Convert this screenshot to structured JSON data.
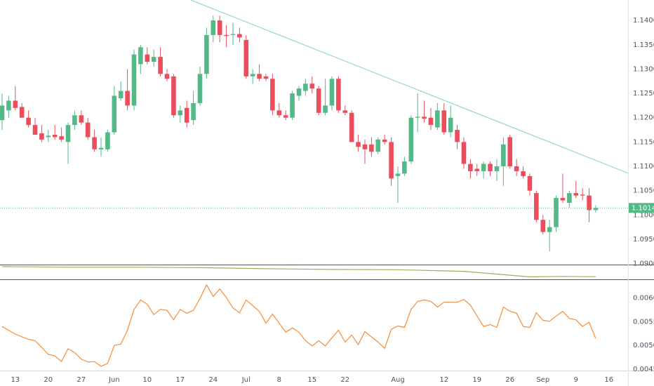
{
  "chart_data": [
    {
      "type": "candlestick",
      "up_color": "#53b987",
      "down_color": "#eb4d5c",
      "open": [
        1.1195,
        1.1215,
        1.1235,
        1.1222,
        1.12,
        1.1185,
        1.1168,
        1.116,
        1.1165,
        1.1162,
        1.115,
        1.1185,
        1.1205,
        1.119,
        1.116,
        1.1135,
        1.1135,
        1.117,
        1.124,
        1.1255,
        1.1225,
        1.131,
        1.133,
        1.1315,
        1.1325,
        1.129,
        1.1285,
        1.1205,
        1.122,
        1.1195,
        1.123,
        1.129,
        1.137,
        1.14,
        1.137,
        1.137,
        1.1372,
        1.136,
        1.1285,
        1.129,
        1.1285,
        1.128,
        1.1215,
        1.1205,
        1.12,
        1.1245,
        1.1255,
        1.127,
        1.126,
        1.121,
        1.1225,
        1.128,
        1.1215,
        1.121,
        1.115,
        1.1145,
        1.1145,
        1.113,
        1.1155,
        1.115,
        1.108,
        1.1085,
        1.111,
        1.12,
        1.1202,
        1.12,
        1.118,
        1.1215,
        1.117,
        1.1175,
        1.115,
        1.1105,
        1.1095,
        1.109,
        1.1105,
        1.109,
        1.11,
        1.116,
        1.11,
        1.109,
        1.108,
        1.1045,
        1.099,
        1.0965,
        1.0975,
        1.1035,
        1.1025,
        1.1045,
        1.1042,
        1.104,
        1.101
      ],
      "high": [
        1.125,
        1.1245,
        1.1265,
        1.123,
        1.1215,
        1.12,
        1.1185,
        1.1175,
        1.1185,
        1.118,
        1.119,
        1.1215,
        1.1215,
        1.12,
        1.1175,
        1.116,
        1.1175,
        1.1265,
        1.1275,
        1.13,
        1.134,
        1.135,
        1.1345,
        1.134,
        1.1345,
        1.13,
        1.129,
        1.1225,
        1.1235,
        1.1255,
        1.1305,
        1.1385,
        1.141,
        1.141,
        1.139,
        1.1395,
        1.1385,
        1.137,
        1.13,
        1.131,
        1.129,
        1.129,
        1.123,
        1.1215,
        1.1255,
        1.1265,
        1.128,
        1.1285,
        1.1265,
        1.128,
        1.1285,
        1.1285,
        1.1225,
        1.1215,
        1.1165,
        1.1155,
        1.116,
        1.116,
        1.1165,
        1.116,
        1.11,
        1.112,
        1.1205,
        1.125,
        1.1235,
        1.122,
        1.123,
        1.123,
        1.1225,
        1.1185,
        1.116,
        1.1115,
        1.1105,
        1.111,
        1.111,
        1.1115,
        1.116,
        1.1165,
        1.1115,
        1.11,
        1.1085,
        1.105,
        1.1,
        1.099,
        1.104,
        1.1085,
        1.105,
        1.107,
        1.1055,
        1.1055,
        1.102
      ],
      "low": [
        1.1175,
        1.12,
        1.1215,
        1.12,
        1.118,
        1.1165,
        1.115,
        1.115,
        1.1155,
        1.115,
        1.1105,
        1.1175,
        1.1185,
        1.1155,
        1.113,
        1.112,
        1.113,
        1.1165,
        1.1235,
        1.1215,
        1.1215,
        1.129,
        1.131,
        1.1305,
        1.1285,
        1.1275,
        1.12,
        1.119,
        1.118,
        1.1185,
        1.1225,
        1.128,
        1.1355,
        1.1355,
        1.1345,
        1.135,
        1.1355,
        1.128,
        1.127,
        1.1275,
        1.1275,
        1.1205,
        1.12,
        1.1195,
        1.1195,
        1.1235,
        1.1245,
        1.125,
        1.1205,
        1.1205,
        1.1215,
        1.121,
        1.1205,
        1.115,
        1.113,
        1.1105,
        1.112,
        1.1125,
        1.1145,
        1.106,
        1.1025,
        1.108,
        1.1105,
        1.117,
        1.119,
        1.1175,
        1.1175,
        1.1165,
        1.116,
        1.1135,
        1.1095,
        1.1075,
        1.108,
        1.1075,
        1.108,
        1.107,
        1.106,
        1.1095,
        1.108,
        1.1075,
        1.104,
        1.0985,
        1.096,
        1.0925,
        1.0965,
        1.1025,
        1.1015,
        1.1035,
        1.103,
        1.0985,
        1.1005
      ],
      "close": [
        1.1225,
        1.1235,
        1.122,
        1.12,
        1.1185,
        1.1165,
        1.1155,
        1.1163,
        1.116,
        1.1155,
        1.1185,
        1.1205,
        1.119,
        1.116,
        1.1135,
        1.1138,
        1.117,
        1.1245,
        1.1255,
        1.1225,
        1.133,
        1.1345,
        1.1315,
        1.1325,
        1.129,
        1.128,
        1.1205,
        1.1215,
        1.119,
        1.123,
        1.129,
        1.137,
        1.14,
        1.137,
        1.1368,
        1.1372,
        1.1365,
        1.1285,
        1.129,
        1.128,
        1.128,
        1.1215,
        1.1205,
        1.12,
        1.125,
        1.126,
        1.127,
        1.126,
        1.121,
        1.1225,
        1.128,
        1.1215,
        1.121,
        1.115,
        1.114,
        1.1135,
        1.113,
        1.1155,
        1.115,
        1.1075,
        1.1085,
        1.111,
        1.12,
        1.1202,
        1.1198,
        1.1185,
        1.1215,
        1.117,
        1.12,
        1.115,
        1.1105,
        1.109,
        1.109,
        1.1105,
        1.109,
        1.11,
        1.1145,
        1.11,
        1.109,
        1.108,
        1.105,
        1.099,
        1.0965,
        1.0975,
        1.1035,
        1.103,
        1.1045,
        1.104,
        1.104,
        1.101,
        1.10145
      ],
      "xlim": [
        -0.32,
        94.9
      ],
      "xticks": [
        {
          "value": 2,
          "label": "13"
        },
        {
          "value": 7,
          "label": "20"
        },
        {
          "value": 12,
          "label": "27"
        },
        {
          "value": 17,
          "label": "Jun"
        },
        {
          "value": 22,
          "label": "10"
        },
        {
          "value": 27,
          "label": "17"
        },
        {
          "value": 32,
          "label": "24"
        },
        {
          "value": 37,
          "label": "Jul"
        },
        {
          "value": 42,
          "label": "8"
        },
        {
          "value": 47,
          "label": "15"
        },
        {
          "value": 52,
          "label": "22"
        },
        {
          "value": 60,
          "label": "Aug"
        },
        {
          "value": 67,
          "label": "12"
        },
        {
          "value": 72,
          "label": "19"
        },
        {
          "value": 77,
          "label": "26"
        },
        {
          "value": 82,
          "label": "Sep"
        },
        {
          "value": 87,
          "label": "9"
        },
        {
          "value": 92,
          "label": "16"
        }
      ],
      "ylim": [
        1.0898,
        1.1442
      ],
      "yticks": [
        {
          "value": 1.14,
          "label": "1.14000"
        },
        {
          "value": 1.135,
          "label": "1.13500"
        },
        {
          "value": 1.13,
          "label": "1.13000"
        },
        {
          "value": 1.125,
          "label": "1.12500"
        },
        {
          "value": 1.12,
          "label": "1.12000"
        },
        {
          "value": 1.115,
          "label": "1.11500"
        },
        {
          "value": 1.11,
          "label": "1.11000"
        },
        {
          "value": 1.105,
          "label": "1.10500"
        },
        {
          "value": 1.1,
          "label": "1.10000"
        },
        {
          "value": 1.095,
          "label": "1.09500"
        },
        {
          "value": 1.09,
          "label": "1.09000"
        }
      ],
      "grid": true,
      "trendline": {
        "x": [
          28.6,
          94.9
        ],
        "y": [
          1.1442,
          1.1086
        ],
        "color": "#7fd3bd"
      },
      "last_price": 1.10145
    },
    {
      "type": "line",
      "color": "#a9aa5e",
      "x": [
        0,
        10,
        20,
        30,
        40,
        50,
        60,
        70,
        80,
        85,
        90
      ],
      "values": [
        9,
        8.6,
        8.6,
        8.2,
        7.4,
        6.9,
        6.7,
        5.5,
        1.3,
        1.7,
        1.4
      ],
      "ylim": [
        0,
        10
      ]
    },
    {
      "type": "line",
      "color": "#f68d37",
      "values": [
        0.0054,
        0.00532,
        0.00524,
        0.00518,
        0.00513,
        0.0051,
        0.00496,
        0.00481,
        0.00478,
        0.00466,
        0.00493,
        0.00485,
        0.00471,
        0.00465,
        0.00466,
        0.00456,
        0.00462,
        0.005,
        0.00503,
        0.00532,
        0.00576,
        0.00596,
        0.00587,
        0.00565,
        0.00576,
        0.00574,
        0.00554,
        0.00576,
        0.00568,
        0.00574,
        0.00599,
        0.00628,
        0.00603,
        0.00619,
        0.00601,
        0.00579,
        0.00569,
        0.00596,
        0.00584,
        0.00572,
        0.00547,
        0.00566,
        0.00547,
        0.00528,
        0.00537,
        0.00528,
        0.0051,
        0.00499,
        0.0051,
        0.00499,
        0.00516,
        0.00532,
        0.00507,
        0.00522,
        0.00502,
        0.00529,
        0.00518,
        0.00507,
        0.00494,
        0.00534,
        0.00541,
        0.00538,
        0.00576,
        0.00593,
        0.00596,
        0.00593,
        0.00581,
        0.00591,
        0.00591,
        0.00591,
        0.00597,
        0.00585,
        0.00562,
        0.0054,
        0.00544,
        0.00538,
        0.00581,
        0.00572,
        0.00568,
        0.0054,
        0.00538,
        0.00569,
        0.00553,
        0.00551,
        0.00562,
        0.00572,
        0.00557,
        0.00554,
        0.0054,
        0.00549,
        0.00515
      ],
      "ylim": [
        0.00447,
        0.00638
      ],
      "yticks": [
        {
          "value": 0.006,
          "label": "0.00600"
        },
        {
          "value": 0.0055,
          "label": "0.00550"
        },
        {
          "value": 0.005,
          "label": "0.00500"
        },
        {
          "value": 0.0045,
          "label": "0.00450"
        }
      ],
      "grid": true
    }
  ]
}
